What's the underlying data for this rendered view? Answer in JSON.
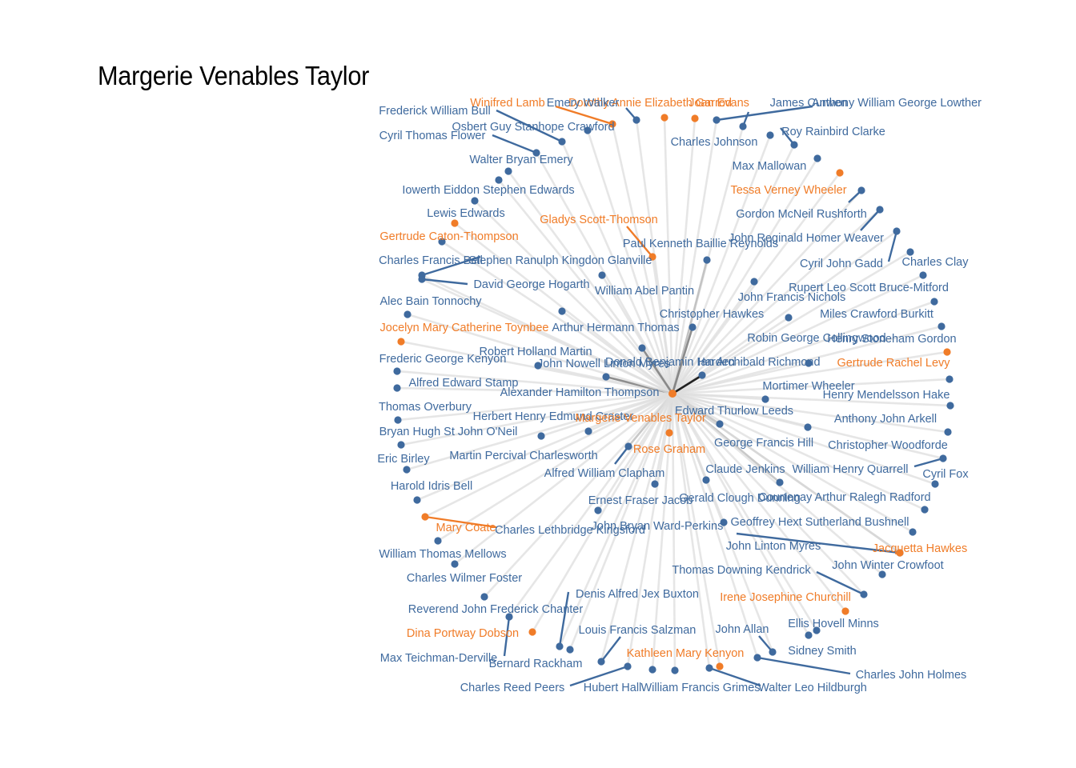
{
  "title": "Margerie Venables Taylor",
  "colors": {
    "female": "#f07c28",
    "male": "#3f6a9e",
    "edge": "#dddddd",
    "edge_strong": "#7a7a7a",
    "edge_focus": "#000000"
  },
  "center": {
    "name": "Margerie Venables Taylor",
    "gender": "female"
  },
  "nodes": [
    {
      "name": "Winifred Lamb",
      "gender": "female",
      "weight": 1
    },
    {
      "name": "Dorothy Annie Elizabeth Garrod",
      "gender": "female",
      "weight": 1
    },
    {
      "name": "Joan Evans",
      "gender": "female",
      "weight": 1
    },
    {
      "name": "Emery Walker",
      "gender": "male",
      "weight": 1
    },
    {
      "name": "James Curwen",
      "gender": "male",
      "weight": 1
    },
    {
      "name": "Anthony William George Lowther",
      "gender": "male",
      "weight": 1
    },
    {
      "name": "Frederick William Bull",
      "gender": "male",
      "weight": 1
    },
    {
      "name": "Osbert Guy Stanhope Crawford",
      "gender": "male",
      "weight": 1
    },
    {
      "name": "Charles Johnson",
      "gender": "male",
      "weight": 1
    },
    {
      "name": "Roy Rainbird Clarke",
      "gender": "male",
      "weight": 1
    },
    {
      "name": "Cyril Thomas Flower",
      "gender": "male",
      "weight": 1
    },
    {
      "name": "Walter Bryan Emery",
      "gender": "male",
      "weight": 1
    },
    {
      "name": "Max Mallowan",
      "gender": "male",
      "weight": 1
    },
    {
      "name": "Iowerth Eiddon Stephen Edwards",
      "gender": "male",
      "weight": 1
    },
    {
      "name": "Tessa Verney Wheeler",
      "gender": "female",
      "weight": 1
    },
    {
      "name": "Gordon McNeil Rushforth",
      "gender": "male",
      "weight": 1
    },
    {
      "name": "Lewis Edwards",
      "gender": "male",
      "weight": 1
    },
    {
      "name": "Gladys Scott-Thomson",
      "gender": "female",
      "weight": 1
    },
    {
      "name": "Gertrude Caton-Thompson",
      "gender": "female",
      "weight": 1
    },
    {
      "name": "John Reginald Homer Weaver",
      "gender": "male",
      "weight": 1
    },
    {
      "name": "Paul Kenneth Baillie Reynolds",
      "gender": "male",
      "weight": 2
    },
    {
      "name": "Charles Francis Bell",
      "gender": "male",
      "weight": 1
    },
    {
      "name": "Stephen Ranulph Kingdon Glanville",
      "gender": "male",
      "weight": 1
    },
    {
      "name": "Cyril John Gadd",
      "gender": "male",
      "weight": 1
    },
    {
      "name": "Charles Clay",
      "gender": "male",
      "weight": 1
    },
    {
      "name": "David George Hogarth",
      "gender": "male",
      "weight": 1
    },
    {
      "name": "William Abel Pantin",
      "gender": "male",
      "weight": 1
    },
    {
      "name": "Rupert Leo Scott Bruce-Mitford",
      "gender": "male",
      "weight": 1
    },
    {
      "name": "Alec Bain Tonnochy",
      "gender": "male",
      "weight": 1
    },
    {
      "name": "John Francis Nichols",
      "gender": "male",
      "weight": 1
    },
    {
      "name": "Christopher Hawkes",
      "gender": "male",
      "weight": 3
    },
    {
      "name": "Miles Crawford Burkitt",
      "gender": "male",
      "weight": 1
    },
    {
      "name": "Jocelyn Mary Catherine Toynbee",
      "gender": "female",
      "weight": 1
    },
    {
      "name": "Arthur Hermann Thomas",
      "gender": "male",
      "weight": 1
    },
    {
      "name": "Robin George Collingwood",
      "gender": "male",
      "weight": 1
    },
    {
      "name": "Henry Stoneham Gordon",
      "gender": "male",
      "weight": 1
    },
    {
      "name": "Robert Holland Martin",
      "gender": "male",
      "weight": 1
    },
    {
      "name": "Gertrude Rachel Levy",
      "gender": "female",
      "weight": 1
    },
    {
      "name": "Frederic George Kenyon",
      "gender": "male",
      "weight": 1
    },
    {
      "name": "John Nowell Linton Myres",
      "gender": "male",
      "weight": 3
    },
    {
      "name": "Donald Benjamin Harden",
      "gender": "male",
      "weight": 3
    },
    {
      "name": "Ian Archibald Richmond",
      "gender": "male",
      "weight": 4
    },
    {
      "name": "Alfred Edward Stamp",
      "gender": "male",
      "weight": 1
    },
    {
      "name": "Alexander Hamilton Thompson",
      "gender": "male",
      "weight": 1
    },
    {
      "name": "Mortimer Wheeler",
      "gender": "male",
      "weight": 1
    },
    {
      "name": "Henry Mendelsson Hake",
      "gender": "male",
      "weight": 1
    },
    {
      "name": "Thomas Overbury",
      "gender": "male",
      "weight": 1
    },
    {
      "name": "Edward Thurlow Leeds",
      "gender": "male",
      "weight": 2
    },
    {
      "name": "Herbert Henry Edmund Craster",
      "gender": "male",
      "weight": 1
    },
    {
      "name": "Anthony John Arkell",
      "gender": "male",
      "weight": 1
    },
    {
      "name": "Bryan Hugh St John O'Neil",
      "gender": "male",
      "weight": 1
    },
    {
      "name": "Martin Percival Charlesworth",
      "gender": "male",
      "weight": 1
    },
    {
      "name": "Rose Graham",
      "gender": "female",
      "weight": 2
    },
    {
      "name": "George Francis Hill",
      "gender": "male",
      "weight": 1
    },
    {
      "name": "Christopher Woodforde",
      "gender": "male",
      "weight": 1
    },
    {
      "name": "Eric Birley",
      "gender": "male",
      "weight": 1
    },
    {
      "name": "Alfred William Clapham",
      "gender": "male",
      "weight": 2
    },
    {
      "name": "Claude Jenkins",
      "gender": "male",
      "weight": 1
    },
    {
      "name": "William Henry Quarrell",
      "gender": "male",
      "weight": 1
    },
    {
      "name": "Cyril Fox",
      "gender": "male",
      "weight": 1
    },
    {
      "name": "Harold Idris Bell",
      "gender": "male",
      "weight": 1
    },
    {
      "name": "Ernest Fraser Jacob",
      "gender": "male",
      "weight": 1
    },
    {
      "name": "Gerald Clough Dunning",
      "gender": "male",
      "weight": 2
    },
    {
      "name": "Courtenay Arthur Ralegh Radford",
      "gender": "male",
      "weight": 1
    },
    {
      "name": "Mary Coate",
      "gender": "female",
      "weight": 1
    },
    {
      "name": "Charles Lethbridge Kingsford",
      "gender": "male",
      "weight": 1
    },
    {
      "name": "John Bryan Ward-Perkins",
      "gender": "male",
      "weight": 1
    },
    {
      "name": "Geoffrey Hext Sutherland Bushnell",
      "gender": "male",
      "weight": 1
    },
    {
      "name": "William Thomas Mellows",
      "gender": "male",
      "weight": 1
    },
    {
      "name": "John Linton Myres",
      "gender": "male",
      "weight": 2
    },
    {
      "name": "Jacquetta Hawkes",
      "gender": "female",
      "weight": 1
    },
    {
      "name": "Charles Wilmer Foster",
      "gender": "male",
      "weight": 1
    },
    {
      "name": "Thomas Downing Kendrick",
      "gender": "male",
      "weight": 1
    },
    {
      "name": "John Winter Crowfoot",
      "gender": "male",
      "weight": 1
    },
    {
      "name": "Denis Alfred Jex Buxton",
      "gender": "male",
      "weight": 1
    },
    {
      "name": "Reverend John Frederick Chanter",
      "gender": "male",
      "weight": 1
    },
    {
      "name": "Irene Josephine Churchill",
      "gender": "female",
      "weight": 1
    },
    {
      "name": "Louis Francis Salzman",
      "gender": "male",
      "weight": 1
    },
    {
      "name": "John Allan",
      "gender": "male",
      "weight": 1
    },
    {
      "name": "Ellis Hovell Minns",
      "gender": "male",
      "weight": 1
    },
    {
      "name": "Dina Portway Dobson",
      "gender": "female",
      "weight": 1
    },
    {
      "name": "Sidney Smith",
      "gender": "male",
      "weight": 1
    },
    {
      "name": "Kathleen Mary Kenyon",
      "gender": "female",
      "weight": 1
    },
    {
      "name": "Max Teichman-Derville",
      "gender": "male",
      "weight": 1
    },
    {
      "name": "Bernard Rackham",
      "gender": "male",
      "weight": 1
    },
    {
      "name": "Charles John Holmes",
      "gender": "male",
      "weight": 1
    },
    {
      "name": "Charles Reed Peers",
      "gender": "male",
      "weight": 1
    },
    {
      "name": "Hubert Hall",
      "gender": "male",
      "weight": 1
    },
    {
      "name": "William Francis Grimes",
      "gender": "male",
      "weight": 1
    },
    {
      "name": "Walter Leo Hildburgh",
      "gender": "male",
      "weight": 1
    }
  ]
}
